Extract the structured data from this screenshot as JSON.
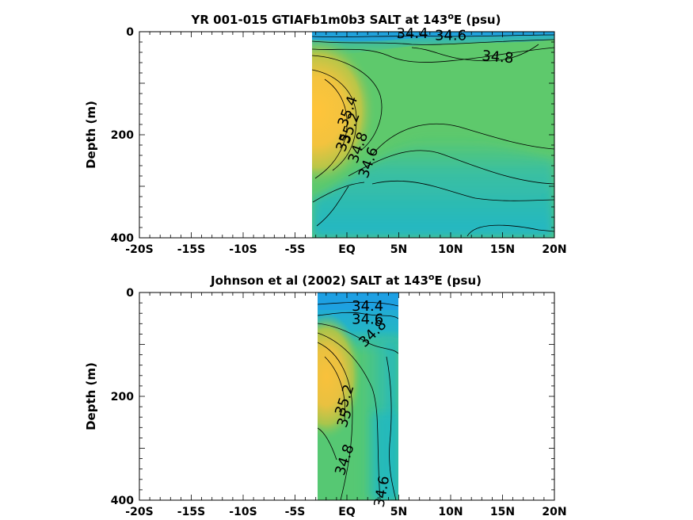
{
  "chart_data": [
    {
      "type": "heatmap",
      "title_prefix": "YR 001-015 GTIAFb1m0b3 SALT at 143",
      "title_sup": "o",
      "title_suffix": "E (psu)",
      "xlabel": "",
      "ylabel": "Depth (m)",
      "xlim": [
        -20,
        20
      ],
      "ylim": [
        400,
        0
      ],
      "x_ticks": [
        -20,
        -15,
        -10,
        -5,
        0,
        5,
        10,
        15,
        20
      ],
      "x_tick_labels": [
        "-20S",
        "-15S",
        "-10S",
        "-5S",
        "EQ",
        "5N",
        "10N",
        "15N",
        "20N"
      ],
      "y_ticks": [
        0,
        200,
        400
      ],
      "y_tick_labels": [
        "0",
        "200",
        "400"
      ],
      "data_lat_range": [
        -3,
        20
      ],
      "data_depth_range": [
        0,
        400
      ],
      "contour_labels": [
        {
          "text": "34.4",
          "lat": 6.3,
          "depth": 12,
          "angle": 0
        },
        {
          "text": "34.6",
          "lat": 10,
          "depth": 16,
          "angle": 0
        },
        {
          "text": "34.8",
          "lat": 14.5,
          "depth": 58,
          "angle": 5
        },
        {
          "text": "35.4",
          "lat": 0.5,
          "depth": 158,
          "angle": -70
        },
        {
          "text": "35.2",
          "lat": 0.7,
          "depth": 190,
          "angle": -70
        },
        {
          "text": "35",
          "lat": 0.1,
          "depth": 218,
          "angle": -70
        },
        {
          "text": "34.8",
          "lat": 1.5,
          "depth": 228,
          "angle": -70
        },
        {
          "text": "34.6",
          "lat": 2.5,
          "depth": 257,
          "angle": -70
        }
      ]
    },
    {
      "type": "heatmap",
      "title_prefix": "Johnson et al (2002) SALT at 143",
      "title_sup": "o",
      "title_suffix": "E (psu)",
      "xlabel": "",
      "ylabel": "Depth (m)",
      "xlim": [
        -20,
        20
      ],
      "ylim": [
        400,
        0
      ],
      "x_ticks": [
        -20,
        -15,
        -10,
        -5,
        0,
        5,
        10,
        15,
        20
      ],
      "x_tick_labels": [
        "-20S",
        "-15S",
        "-10S",
        "-5S",
        "EQ",
        "5N",
        "10N",
        "15N",
        "20N"
      ],
      "y_ticks": [
        0,
        200,
        400
      ],
      "y_tick_labels": [
        "0",
        "200",
        "400"
      ],
      "data_lat_range": [
        -2.6,
        5.2
      ],
      "data_depth_range": [
        0,
        400
      ],
      "contour_labels": [
        {
          "text": "34.4",
          "lat": 2,
          "depth": 35,
          "angle": 0
        },
        {
          "text": "34.6",
          "lat": 2,
          "depth": 60,
          "angle": 0
        },
        {
          "text": "34.8",
          "lat": 2.8,
          "depth": 85,
          "angle": -45
        },
        {
          "text": "35.2",
          "lat": 0.2,
          "depth": 210,
          "angle": -72
        },
        {
          "text": "35",
          "lat": 0.2,
          "depth": 245,
          "angle": -72
        },
        {
          "text": "34.8",
          "lat": 0.2,
          "depth": 325,
          "angle": -72
        },
        {
          "text": "34.6",
          "lat": 3.8,
          "depth": 385,
          "angle": -80
        }
      ]
    }
  ]
}
